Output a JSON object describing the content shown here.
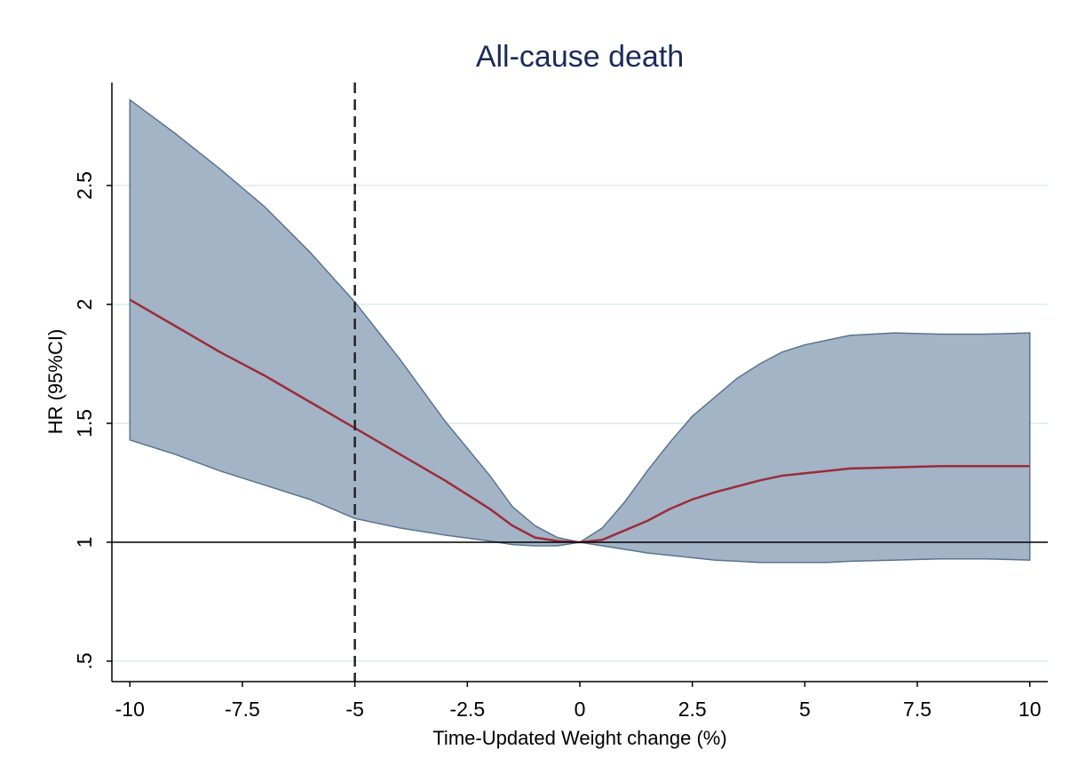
{
  "chart_data": {
    "type": "line-band",
    "title": "All-cause death",
    "x_label": "Time-Updated Weight change (%)",
    "y_label": "HR (95%CI)",
    "x": [
      -10,
      -9,
      -8,
      -7,
      -6,
      -5,
      -4,
      -3,
      -2,
      -1.5,
      -1,
      -0.5,
      0,
      0.5,
      1,
      1.5,
      2,
      2.5,
      3,
      3.5,
      4,
      4.5,
      5,
      5.5,
      6,
      7,
      8,
      9,
      10
    ],
    "values": [
      2.02,
      1.91,
      1.8,
      1.7,
      1.59,
      1.48,
      1.37,
      1.26,
      1.14,
      1.07,
      1.02,
      1.005,
      1,
      1.01,
      1.05,
      1.09,
      1.14,
      1.18,
      1.21,
      1.235,
      1.26,
      1.28,
      1.29,
      1.3,
      1.31,
      1.315,
      1.32,
      1.32,
      1.32
    ],
    "upper": [
      2.86,
      2.72,
      2.57,
      2.41,
      2.22,
      2.01,
      1.77,
      1.51,
      1.28,
      1.15,
      1.07,
      1.02,
      1,
      1.06,
      1.17,
      1.3,
      1.42,
      1.53,
      1.61,
      1.69,
      1.75,
      1.8,
      1.83,
      1.85,
      1.87,
      1.88,
      1.875,
      1.875,
      1.88
    ],
    "lower": [
      1.43,
      1.37,
      1.3,
      1.24,
      1.18,
      1.1,
      1.06,
      1.03,
      1.005,
      0.99,
      0.985,
      0.985,
      1,
      0.985,
      0.97,
      0.955,
      0.945,
      0.935,
      0.925,
      0.92,
      0.915,
      0.915,
      0.915,
      0.915,
      0.92,
      0.925,
      0.93,
      0.93,
      0.925
    ],
    "color": "#9b2c3a",
    "band_color": "#a3b4c6",
    "band_edge_color": "#5a7390",
    "hlines": [
      1
    ],
    "vlines": [
      -5
    ],
    "xlim": [
      -10.4,
      10.4
    ],
    "ylim": [
      0.414,
      2.933
    ],
    "xticks": [
      -10,
      -7.5,
      -5,
      -2.5,
      0,
      2.5,
      5,
      7.5,
      10
    ],
    "yticks": [
      {
        "value": 0.5,
        "label": ".5"
      },
      1,
      1.5,
      2,
      2.5
    ],
    "grid": true
  }
}
